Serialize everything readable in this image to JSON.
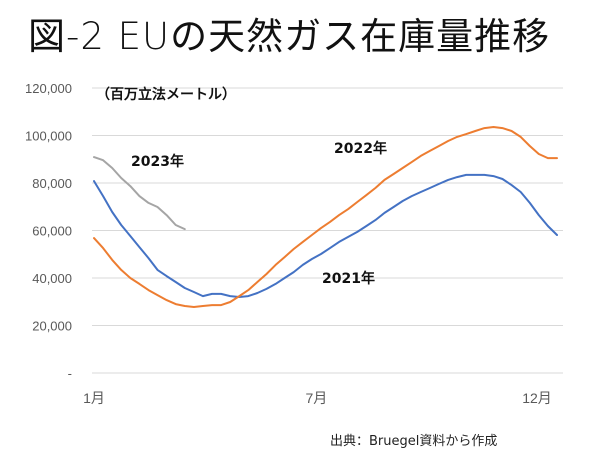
{
  "title": "図-2 EUの天然ガス在庫量推移",
  "source": "出典：Bruegel資料から作成",
  "chart_data": {
    "type": "line",
    "title": "図-2 EUの天然ガス在庫量推移",
    "ylabel": "（百万立法メートル）",
    "xlabel": "",
    "ylim": [
      0,
      120000
    ],
    "yticks": [
      {
        "value": 0,
        "label": "-"
      },
      {
        "value": 20000,
        "label": "20,000"
      },
      {
        "value": 40000,
        "label": "40,000"
      },
      {
        "value": 60000,
        "label": "60,000"
      },
      {
        "value": 80000,
        "label": "80,000"
      },
      {
        "value": 100000,
        "label": "100,000"
      },
      {
        "value": 120000,
        "label": "120,000"
      }
    ],
    "x_unit": "week of year (0 = start of January)",
    "xlim": [
      0,
      51
    ],
    "xticks": [
      {
        "value": 0,
        "label": "1月"
      },
      {
        "value": 24.5,
        "label": "7月"
      },
      {
        "value": 48.8,
        "label": "12月"
      }
    ],
    "grid": true,
    "legend": "inline labels",
    "series": [
      {
        "name": "2021年",
        "color": "#4472C4",
        "values": [
          80800,
          74500,
          67800,
          62300,
          57700,
          53000,
          48400,
          43400,
          40800,
          38300,
          35800,
          34100,
          32400,
          33300,
          33300,
          32400,
          32000,
          32400,
          33700,
          35400,
          37500,
          40000,
          42500,
          45500,
          48000,
          50100,
          52600,
          55200,
          57300,
          59400,
          61900,
          64400,
          67400,
          69900,
          72400,
          74500,
          76200,
          77900,
          79600,
          81300,
          82500,
          83400,
          83400,
          83400,
          82900,
          81700,
          79100,
          76200,
          71600,
          66500,
          61900,
          58100
        ]
      },
      {
        "name": "2022年",
        "color": "#ED7D31",
        "values": [
          56800,
          52600,
          47600,
          43400,
          40000,
          37500,
          34900,
          32800,
          30700,
          29000,
          28200,
          27800,
          28200,
          28600,
          28600,
          29900,
          32400,
          34900,
          38300,
          41700,
          45500,
          48800,
          52200,
          55200,
          58100,
          61000,
          63600,
          66500,
          69000,
          72000,
          74900,
          77900,
          81300,
          83800,
          86300,
          88800,
          91400,
          93500,
          95600,
          97700,
          99400,
          100600,
          101900,
          103100,
          103600,
          103100,
          101900,
          99400,
          95600,
          92200,
          90500,
          90500
        ]
      },
      {
        "name": "2023年",
        "color": "#A5A5A5",
        "values": [
          90900,
          89600,
          86300,
          82100,
          78700,
          74500,
          71600,
          69900,
          66500,
          62300,
          60600
        ]
      }
    ]
  }
}
